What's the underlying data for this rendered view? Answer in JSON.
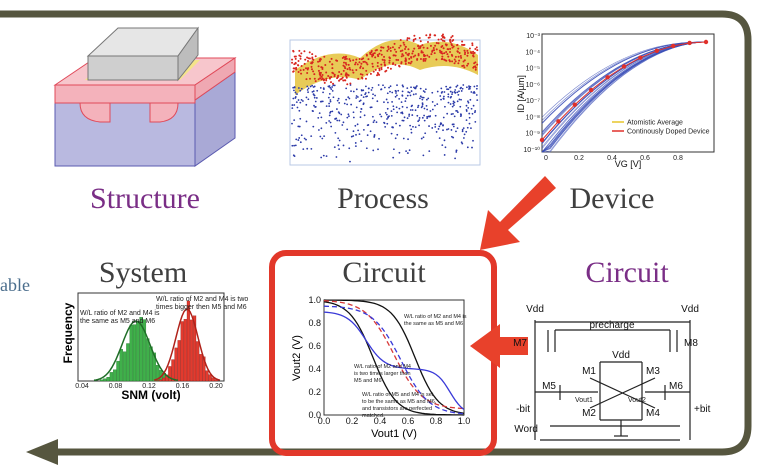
{
  "stages": {
    "structure": "Structure",
    "process": "Process",
    "device": "Device",
    "system": "System",
    "circuit_selected": "Circuit",
    "circuit_schematic": "Circuit"
  },
  "partial_text": "able",
  "device_plot": {
    "y_label": "ID [A/µm]",
    "x_label": "VG [V]",
    "x_ticks": [
      "0",
      "0.2",
      "0.4",
      "0.6",
      "0.8"
    ],
    "y_ticks": [
      "10⁻³",
      "10⁻⁴",
      "10⁻⁵",
      "10⁻⁶",
      "10⁻⁷",
      "10⁻⁸",
      "10⁻⁹",
      "10⁻¹⁰"
    ],
    "legend": [
      "Atomistic Average",
      "Continously Doped Device"
    ]
  },
  "histogram": {
    "y_label": "Frequency",
    "x_label": "SNM (volt)",
    "x_ticks": [
      "0.04",
      "0.08",
      "0.12",
      "0.16",
      "0.20"
    ],
    "annotation_left": [
      "W/L ratio of M2 and M4 is",
      "the same as M5 and M6"
    ],
    "annotation_right": [
      "W/L ratio of M2 and M4 is two",
      "times bigger then M5 and M6"
    ]
  },
  "butterfly_plot": {
    "y_label": "Vout2 (V)",
    "x_label": "Vout1 (V)",
    "x_ticks": [
      "0.0",
      "0.2",
      "0.4",
      "0.6",
      "0.8",
      "1.0"
    ],
    "y_ticks": [
      "0.0",
      "0.2",
      "0.4",
      "0.6",
      "0.8",
      "1.0"
    ],
    "annotation_top": [
      "W/L ratio of M2 and M4 is",
      "the same as M5 and M6"
    ],
    "annotation_mid": [
      "W/L ratio of M2 and M4",
      "is two times larger than",
      "M5 and M6"
    ],
    "annotation_bottom": [
      "W/L ratio of M5 and M4 is set",
      "to be the same as M5 and M6,",
      "and transistors are perfected",
      "matched."
    ]
  },
  "schematic": {
    "vdd_left": "Vdd",
    "vdd_right": "Vdd",
    "vdd_center": "Vdd",
    "precharge": "precharge",
    "m7": "M7",
    "m8": "M8",
    "m1": "M1",
    "m3": "M3",
    "m5": "M5",
    "m6": "M6",
    "m2": "M2",
    "m4": "M4",
    "vout1": "Vout1",
    "vout2": "Vout2",
    "bit_minus": "-bit",
    "bit_plus": "+bit",
    "word": "Word"
  }
}
